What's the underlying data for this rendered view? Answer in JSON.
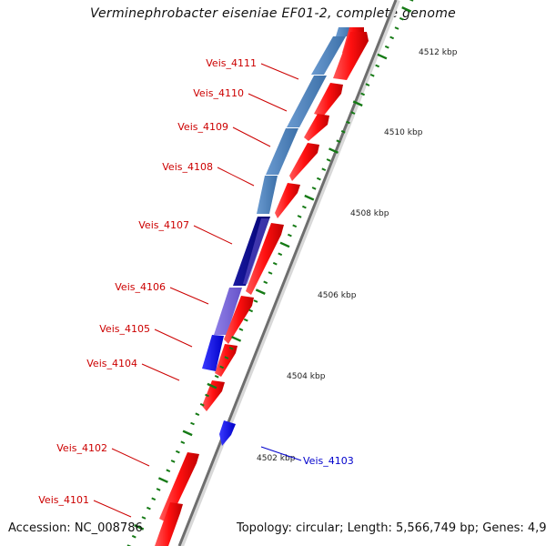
{
  "header": {
    "title": "Verminephrobacter eiseniae EF01-2, complete genome"
  },
  "footer": {
    "accession": "Accession: NC_008786",
    "topology": "Topology: circular; Length: 5,566,749 bp; Genes: 4,966"
  },
  "ticks": [
    {
      "label": "4512 kbp"
    },
    {
      "label": "4510 kbp"
    },
    {
      "label": "4508 kbp"
    },
    {
      "label": "4506 kbp"
    },
    {
      "label": "4504 kbp"
    },
    {
      "label": "4502 kbp"
    }
  ],
  "genes": [
    {
      "name": "Veis_4111",
      "color": "#cc0000"
    },
    {
      "name": "Veis_4110",
      "color": "#cc0000"
    },
    {
      "name": "Veis_4109",
      "color": "#cc0000"
    },
    {
      "name": "Veis_4108",
      "color": "#cc0000"
    },
    {
      "name": "Veis_4107",
      "color": "#cc0000"
    },
    {
      "name": "Veis_4106",
      "color": "#cc0000"
    },
    {
      "name": "Veis_4105",
      "color": "#cc0000"
    },
    {
      "name": "Veis_4104",
      "color": "#cc0000"
    },
    {
      "name": "Veis_4103",
      "color": "#0000cc"
    },
    {
      "name": "Veis_4102",
      "color": "#cc0000"
    },
    {
      "name": "Veis_4101",
      "color": "#cc0000"
    }
  ],
  "colors": {
    "forward_feature": "#ff1a1a",
    "reverse_feature": "#2222ff",
    "blast_steelblue": "#4f86bf",
    "blast_navy": "#0a0a8a",
    "blast_slate": "#7b68d8",
    "tick_green": "#157a15",
    "backbone": "#777777"
  }
}
